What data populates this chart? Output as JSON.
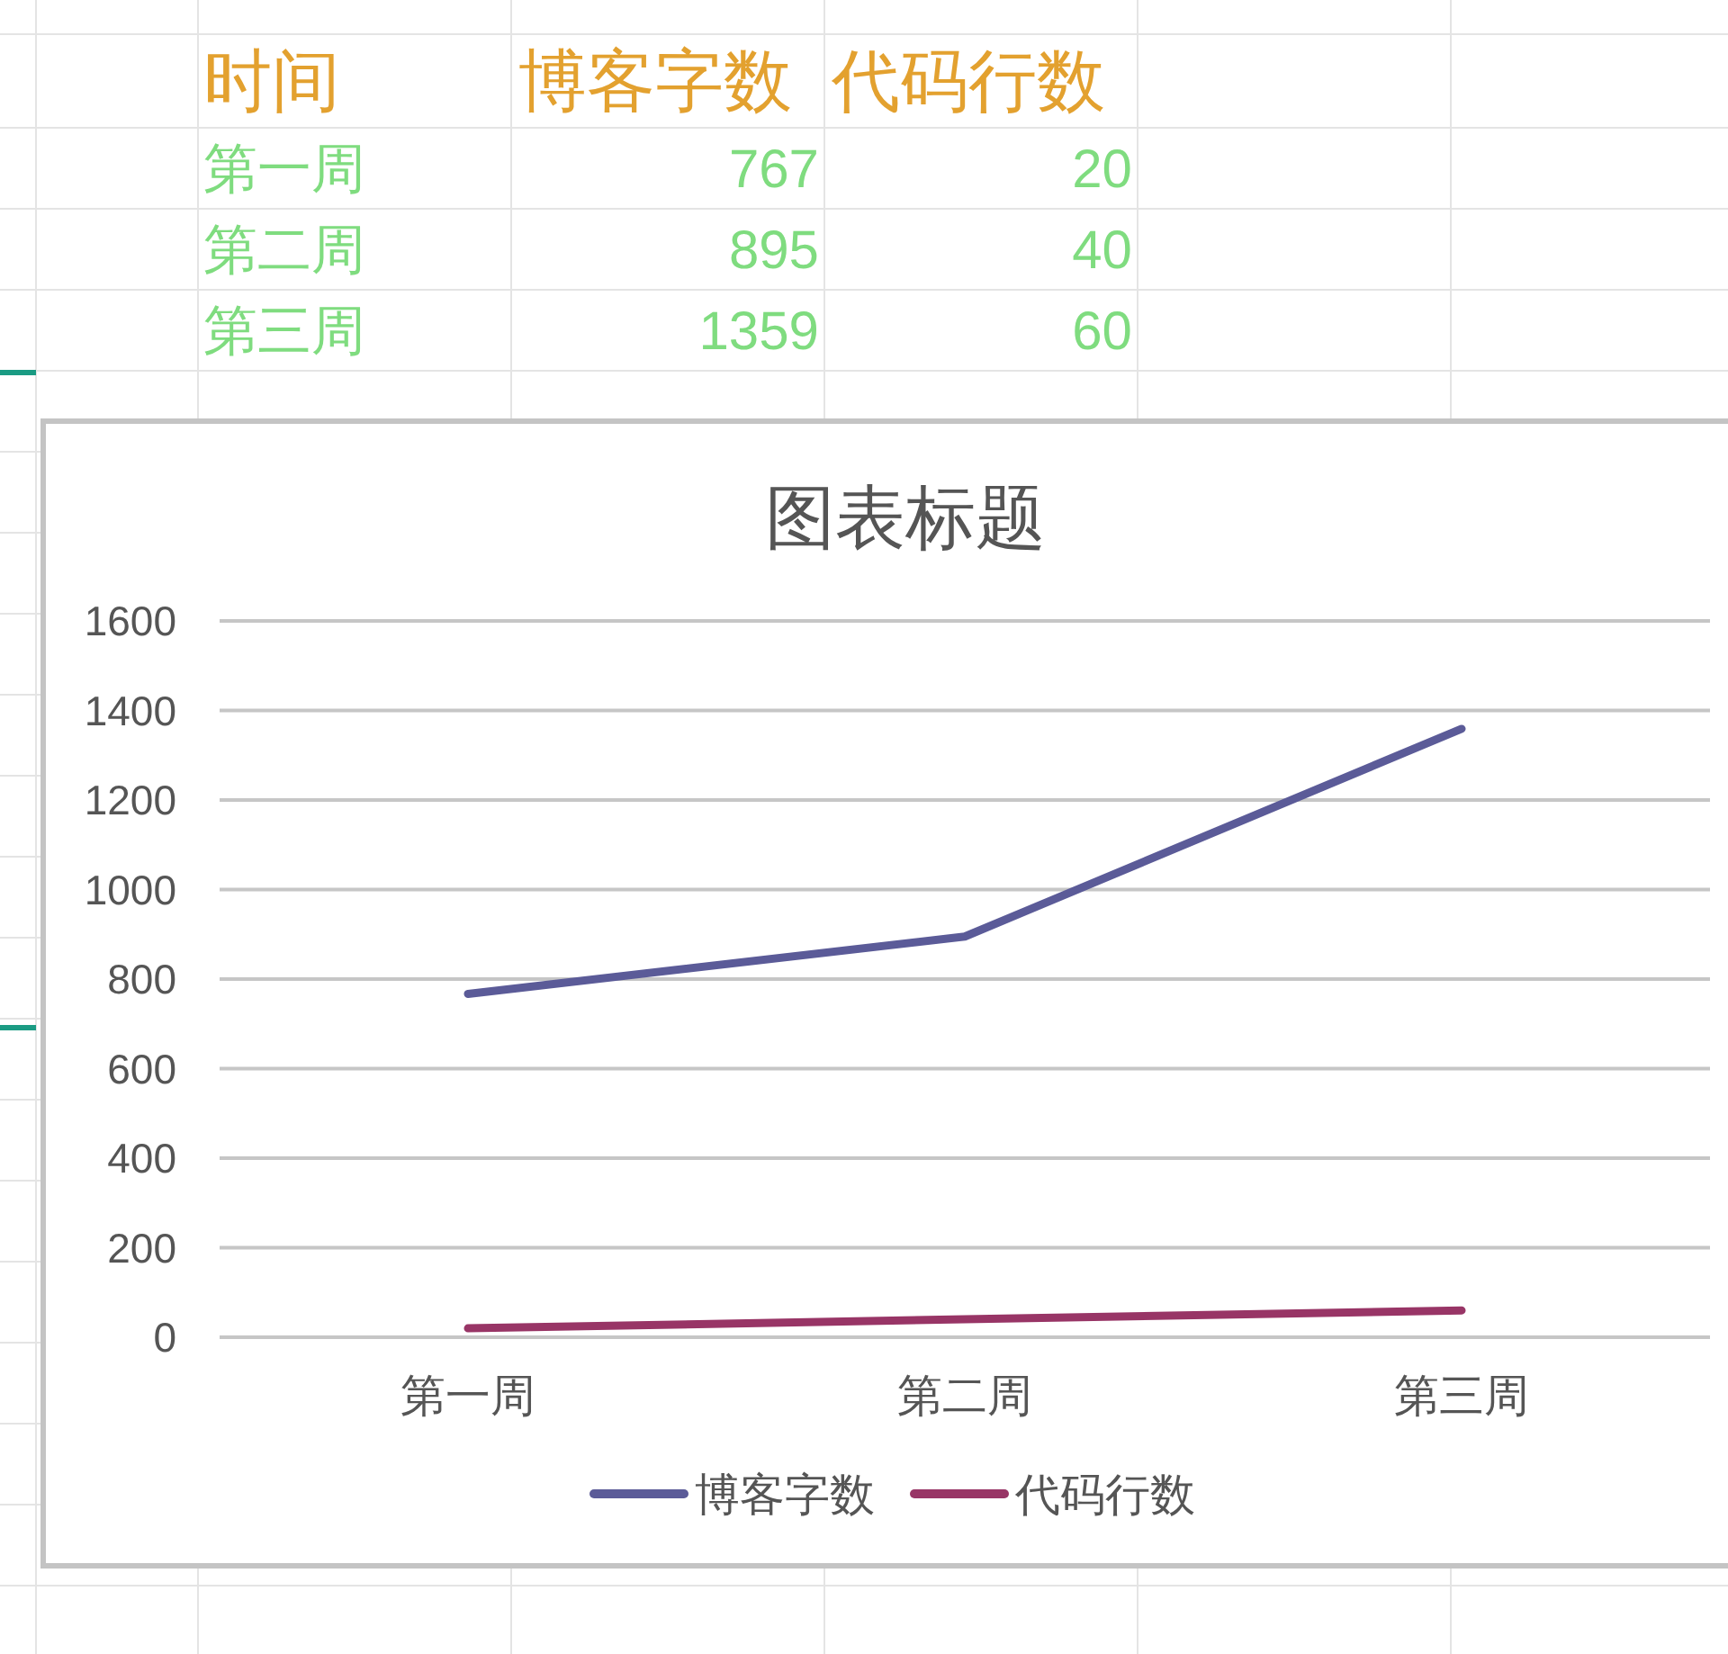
{
  "chart_data": [
    {
      "type": "other",
      "categories": [
        "时间",
        "博客字数",
        "代码行数"
      ],
      "annotations": [
        "第一周",
        "767",
        "20",
        "第二周",
        "895",
        "40",
        "第三周",
        "1359",
        "60"
      ]
    },
    {
      "type": "line",
      "title": "图表标题",
      "categories": [
        "第一周",
        "第二周",
        "第三周"
      ],
      "series": [
        {
          "name": "博客字数",
          "color": "#5b5b98",
          "values": [
            767,
            895,
            1359
          ]
        },
        {
          "name": "代码行数",
          "color": "#983566",
          "values": [
            20,
            40,
            60
          ]
        }
      ],
      "ylim": [
        0,
        1600
      ],
      "yticks": [
        0,
        200,
        400,
        600,
        800,
        1000,
        1200,
        1400,
        1600
      ],
      "grid": "y",
      "legend": "bottom"
    }
  ]
}
